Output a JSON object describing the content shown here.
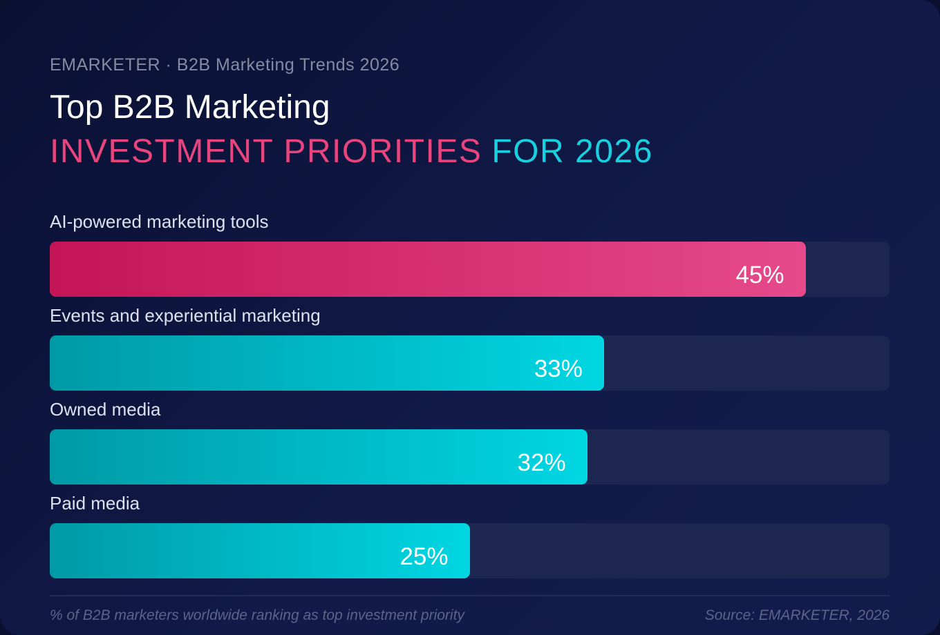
{
  "header": {
    "kicker": "EMARKETER · B2B Marketing Trends 2026",
    "title_line1": "Top B2B Marketing",
    "title_line2_highlight": "INVESTMENT PRIORITIES",
    "title_line2_rest": "FOR 2026"
  },
  "colors": {
    "primary": "#e8457f",
    "secondary": "#19d0e0",
    "track": "#1d264f",
    "background": "#111a48"
  },
  "chart_data": {
    "type": "bar",
    "orientation": "horizontal",
    "title": "Top B2B Marketing INVESTMENT PRIORITIES FOR 2026",
    "categories": [
      "AI-powered marketing tools",
      "Events and experiential marketing",
      "Owned media",
      "Paid media"
    ],
    "values": [
      45,
      33,
      32,
      25
    ],
    "value_labels": [
      "45%",
      "33%",
      "32%",
      "25%"
    ],
    "bar_colors": [
      "pink",
      "cyan",
      "cyan",
      "cyan"
    ],
    "xlim": [
      0,
      50
    ],
    "grid": false,
    "legend": "none",
    "note": "% of B2B marketers worldwide ranking as top investment priority",
    "source": "Source: EMARKETER, 2026"
  }
}
